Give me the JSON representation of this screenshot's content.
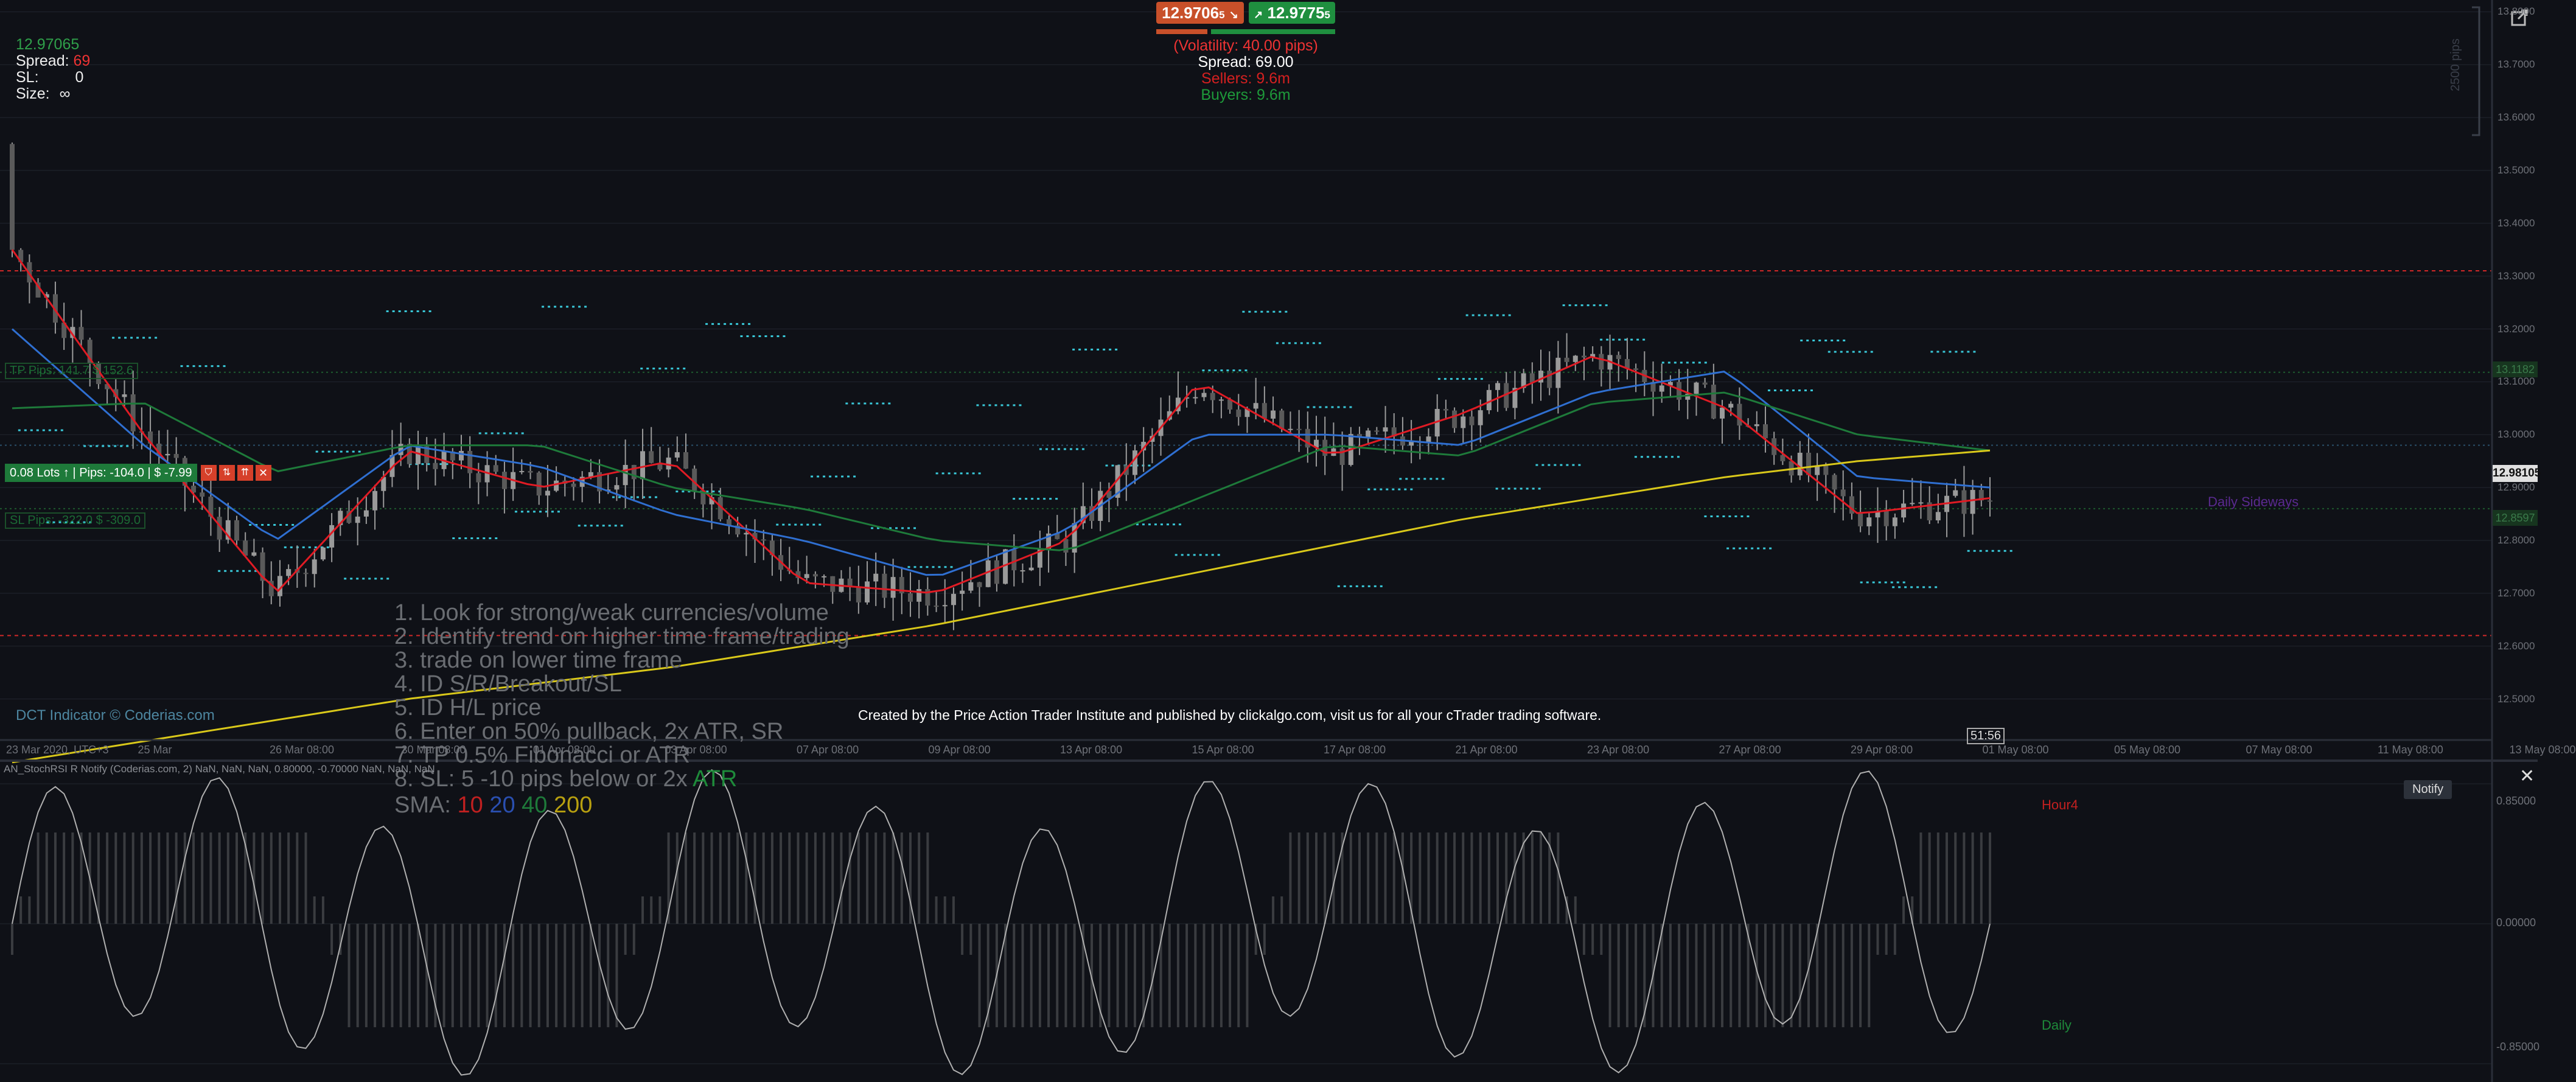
{
  "colors": {
    "background": "#0f1117",
    "grid": "#22262f",
    "candle": "#9a9a9a",
    "sma10": "#e01b24",
    "sma20": "#2f6fd1",
    "sma40": "#1e7a3a",
    "sma200": "#d9c81a",
    "sell": "#c8502a",
    "buy": "#1f8f3f",
    "level_red": "#d02828",
    "level_cyan": "#39c8d8"
  },
  "price_box": {
    "price": "12.97065",
    "spread_label": "Spread:",
    "spread_value": "69",
    "sl_label": "SL:",
    "sl_value": "0",
    "size_label": "Size:",
    "size_value": "∞"
  },
  "quote_panel": {
    "sell_price": "12.9706",
    "sell_sup": "5",
    "buy_price": "12.9775",
    "buy_sup": "5",
    "volatility": "(Volatility: 40.00 pips)",
    "spread": "Spread: 69.00",
    "sellers": "Sellers: 9.6m",
    "buyers": "Buyers: 9.6m"
  },
  "position_bar": {
    "lots": "0.08 Lots",
    "pips": "Pips: -104.0",
    "pnl": "$ -7.99",
    "tp_label": "TP  Pips: 141.7  $ 152.6",
    "sl_label": "SL  Pips: -322.0  $ -309.0"
  },
  "strategy_notes": {
    "line1": "1. Look for strong/weak currencies/volume",
    "line2": "2. Identify trend on higher time frame/trading",
    "line3": "3. trade on lower time frame",
    "line4": "4. ID S/R/Breakout/SL",
    "line5": "5. ID H/L price",
    "line6": "6. Enter on 50% pullback, 2x ATR, SR",
    "line7": "7. TP 0.5% Fibonacci or ATR",
    "line8_prefix": "8. SL: 5 -10 pips below or 2x ",
    "line8_atr": "ATR",
    "sma_label": "SMA: ",
    "sma10": "10",
    "sma20": "20",
    "sma40": "40",
    "sma200": "200"
  },
  "footer": {
    "copyright": "DCT Indicator ©   Coderias.com",
    "credits": "Created by the Price Action Trader Institute and published by clickalgo.com, visit us for all your cTrader trading software.",
    "candle_timer": "51:56"
  },
  "price_axis": {
    "labels": [
      "13.8000",
      "13.7000",
      "13.6000",
      "13.5000",
      "13.4000",
      "13.3000",
      "13.2000",
      "13.1000",
      "13.0000",
      "12.9000",
      "12.8000",
      "12.7000",
      "12.6000",
      "12.5000"
    ],
    "current_price": "12.98105",
    "tp_price": "13.1182",
    "sl_price": "12.8597",
    "pips_scale": "2500 pips"
  },
  "time_axis": {
    "labels": [
      "23 Mar 2020, UTC+3",
      "25 Mar",
      "26 Mar 08:00",
      "30 Mar 08:00",
      "01 Apr 08:00",
      "03 Apr 08:00",
      "07 Apr 08:00",
      "09 Apr 08:00",
      "13 Apr 08:00",
      "15 Apr 08:00",
      "17 Apr 08:00",
      "21 Apr 08:00",
      "23 Apr 08:00",
      "27 Apr 08:00",
      "29 Apr 08:00",
      "01 May 08:00",
      "05 May 08:00",
      "07 May 08:00",
      "11 May 08:00",
      "13 May 08:00"
    ]
  },
  "annotations": {
    "daily_sideways": "Daily Sideways",
    "hour4": "Hour4",
    "daily": "Daily"
  },
  "indicator_panel": {
    "title": "AN_StochRSI R Notify (Coderias.com, 2) NaN, NaN, NaN, 0.80000, -0.70000 NaN, NaN, NaN",
    "notify_label": "Notify",
    "axis_labels": [
      "0.85000",
      "0.00000",
      "-0.85000"
    ]
  },
  "chart_data": {
    "type": "line",
    "title": "",
    "xlabel": "",
    "ylabel": "",
    "x": [
      "23 Mar",
      "25 Mar",
      "26 Mar",
      "30 Mar",
      "01 Apr",
      "03 Apr",
      "07 Apr",
      "09 Apr",
      "13 Apr",
      "15 Apr",
      "17 Apr",
      "21 Apr",
      "23 Apr",
      "27 Apr",
      "29 Apr",
      "01 May"
    ],
    "ylim": [
      12.45,
      13.85
    ],
    "series": [
      {
        "name": "SMA 10",
        "values": [
          13.35,
          13.0,
          12.7,
          12.97,
          12.9,
          12.95,
          12.72,
          12.7,
          12.8,
          13.1,
          12.96,
          13.04,
          13.15,
          13.05,
          12.85,
          12.88
        ]
      },
      {
        "name": "SMA 20",
        "values": [
          13.2,
          12.98,
          12.8,
          12.98,
          12.94,
          12.85,
          12.8,
          12.73,
          12.82,
          13.0,
          13.0,
          12.98,
          13.08,
          13.12,
          12.92,
          12.9
        ]
      },
      {
        "name": "SMA 40",
        "values": [
          13.05,
          13.06,
          12.93,
          12.98,
          12.98,
          12.9,
          12.86,
          12.8,
          12.78,
          12.88,
          12.98,
          12.96,
          13.06,
          13.08,
          13.0,
          12.97
        ]
      },
      {
        "name": "SMA 200",
        "values": [
          12.38,
          12.42,
          12.46,
          12.5,
          12.53,
          12.56,
          12.6,
          12.64,
          12.69,
          12.74,
          12.79,
          12.84,
          12.88,
          12.92,
          12.95,
          12.97
        ]
      }
    ]
  }
}
